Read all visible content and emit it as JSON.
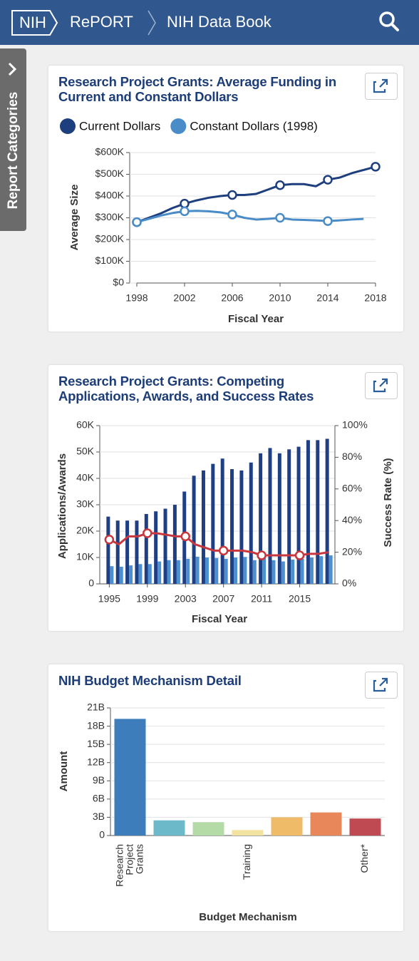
{
  "header": {
    "logo": "NIH",
    "site": "RePORT",
    "page": "NIH Data Book"
  },
  "sidebar": {
    "label": "Report Categories"
  },
  "chart_data": [
    {
      "type": "line",
      "title": "Research Project Grants: Average Funding in Current and Constant Dollars",
      "x_label": "Fiscal Year",
      "y_label": "Average Size",
      "x": [
        1998,
        1999,
        2000,
        2001,
        2002,
        2003,
        2004,
        2005,
        2006,
        2007,
        2008,
        2009,
        2010,
        2011,
        2012,
        2013,
        2014,
        2015,
        2016,
        2017,
        2018
      ],
      "series": [
        {
          "name": "Current Dollars",
          "color": "#1e3f7e",
          "values": [
            280000,
            300000,
            320000,
            345000,
            365000,
            380000,
            392000,
            400000,
            405000,
            405000,
            410000,
            430000,
            450000,
            455000,
            455000,
            445000,
            475000,
            485000,
            505000,
            520000,
            535000
          ]
        },
        {
          "name": "Constant Dollars (1998)",
          "color": "#4a8cc7",
          "values": [
            280000,
            295000,
            310000,
            322000,
            330000,
            332000,
            330000,
            325000,
            315000,
            300000,
            292000,
            295000,
            300000,
            292000,
            290000,
            288000,
            285000,
            288000,
            292000,
            295000,
            null
          ]
        }
      ],
      "xlim": [
        1998,
        2018
      ],
      "xticks": [
        1998,
        2002,
        2006,
        2010,
        2014,
        2018
      ],
      "ylim": [
        0,
        600000
      ],
      "yticks": [
        {
          "value": 0,
          "label": "$0"
        },
        {
          "value": 100000,
          "label": "$100K"
        },
        {
          "value": 200000,
          "label": "$200K"
        },
        {
          "value": 300000,
          "label": "$300K"
        },
        {
          "value": 400000,
          "label": "$400K"
        },
        {
          "value": 500000,
          "label": "$500K"
        },
        {
          "value": 600000,
          "label": "$600K"
        }
      ],
      "grid": true
    },
    {
      "type": "bar",
      "title": "Research Project Grants: Competing Applications, Awards, and Success Rates",
      "x_label": "Fiscal Year",
      "y_label": "Applications/Awards",
      "y2_label": "Success Rate (%)",
      "x": [
        1995,
        1996,
        1997,
        1998,
        1999,
        2000,
        2001,
        2002,
        2003,
        2004,
        2005,
        2006,
        2007,
        2008,
        2009,
        2010,
        2011,
        2012,
        2013,
        2014,
        2015,
        2016,
        2017,
        2018
      ],
      "series": [
        {
          "color": "#1f3f85",
          "values": [
            25500,
            24000,
            24000,
            24000,
            26500,
            27500,
            28500,
            30000,
            35000,
            41000,
            43000,
            45500,
            47500,
            43500,
            43000,
            46000,
            49500,
            51500,
            49500,
            51000,
            52000,
            54500,
            54500,
            55000
          ]
        },
        {
          "color": "#4d90d0",
          "values": [
            6700,
            6500,
            7000,
            7500,
            7500,
            8500,
            9000,
            9000,
            9500,
            10300,
            10000,
            9800,
            9500,
            10000,
            10200,
            9000,
            9800,
            9000,
            8500,
            9200,
            9500,
            10000,
            10500,
            10800
          ]
        },
        {
          "type": "line",
          "axis": "y2",
          "color": "#c8373d",
          "values": [
            28,
            25,
            30,
            30,
            32,
            32,
            31,
            30,
            30,
            25,
            23,
            21,
            21,
            21,
            21,
            20,
            18,
            18,
            18,
            18,
            18,
            19,
            19,
            20
          ]
        }
      ],
      "xlim": [
        1994,
        2018.7
      ],
      "xticks": [
        1995,
        1999,
        2003,
        2007,
        2011,
        2015
      ],
      "ylim": [
        0,
        60000
      ],
      "yticks": [
        0,
        {
          "value": 10000,
          "label": "10K"
        },
        {
          "value": 20000,
          "label": "20K"
        },
        {
          "value": 30000,
          "label": "30K"
        },
        {
          "value": 40000,
          "label": "40K"
        },
        {
          "value": 50000,
          "label": "50K"
        },
        {
          "value": 60000,
          "label": "60K"
        }
      ],
      "y2lim": [
        0,
        100
      ],
      "y2ticks": [
        {
          "value": 0,
          "label": "0%"
        },
        {
          "value": 20,
          "label": "20%"
        },
        {
          "value": 40,
          "label": "40%"
        },
        {
          "value": 60,
          "label": "60%"
        },
        {
          "value": 80,
          "label": "80%"
        },
        {
          "value": 100,
          "label": "100%"
        }
      ],
      "grid": true
    },
    {
      "type": "bar",
      "title": "NIH Budget Mechanism Detail",
      "x_label": "Budget Mechanism",
      "y_label": "Amount",
      "categories": [
        "Research Project Grants",
        null,
        null,
        "Training",
        null,
        null,
        "Other*"
      ],
      "values": [
        19200000000,
        2500000000,
        2200000000,
        900000000,
        3000000000,
        3800000000,
        2800000000
      ],
      "colors": [
        "#3d7dbb",
        "#6cb9c9",
        "#b4daa6",
        "#f3e3a0",
        "#efbb68",
        "#e8885a",
        "#c04a52"
      ],
      "ylim": [
        0,
        21000000000
      ],
      "yticks": [
        0,
        {
          "value": 3000000000,
          "label": "3B"
        },
        {
          "value": 6000000000,
          "label": "6B"
        },
        {
          "value": 9000000000,
          "label": "9B"
        },
        {
          "value": 12000000000,
          "label": "12B"
        },
        {
          "value": 15000000000,
          "label": "15B"
        },
        {
          "value": 18000000000,
          "label": "18B"
        },
        {
          "value": 21000000000,
          "label": "21B"
        }
      ],
      "grid": true
    }
  ]
}
